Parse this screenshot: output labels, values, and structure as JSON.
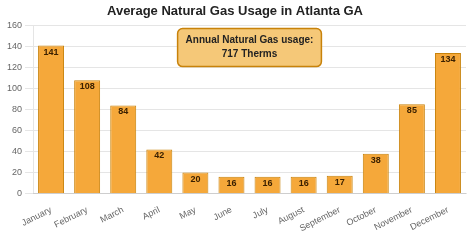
{
  "chart_data": {
    "type": "bar",
    "title": "Average Natural Gas Usage in Atlanta GA",
    "categories": [
      "January",
      "February",
      "March",
      "April",
      "May",
      "June",
      "July",
      "August",
      "September",
      "October",
      "November",
      "December"
    ],
    "values": [
      141,
      108,
      84,
      42,
      20,
      16,
      16,
      16,
      17,
      38,
      85,
      134
    ],
    "color": "#F5A83A",
    "ylim": [
      0,
      160
    ],
    "yticks": [
      0,
      20,
      40,
      60,
      80,
      100,
      120,
      140,
      160
    ],
    "grid": true,
    "data_labels": true,
    "annotation": "Annual Natural Gas usage:\n717 Therms"
  }
}
